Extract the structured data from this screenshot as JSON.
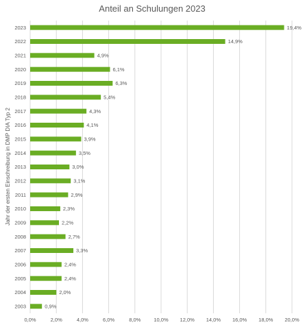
{
  "chart_data": {
    "type": "bar",
    "orientation": "horizontal",
    "title": "Anteil an Schulungen 2023",
    "ylabel": "Jahr der ersten Einschreibung in DMP DIA Typ 2",
    "xlabel": "",
    "categories": [
      "2023",
      "2022",
      "2021",
      "2020",
      "2019",
      "2018",
      "2017",
      "2016",
      "2015",
      "2014",
      "2013",
      "2012",
      "2011",
      "2010",
      "2009",
      "2008",
      "2007",
      "2006",
      "2005",
      "2004",
      "2003"
    ],
    "values": [
      19.4,
      14.9,
      4.9,
      6.1,
      6.3,
      5.4,
      4.3,
      4.1,
      3.9,
      3.5,
      3.0,
      3.1,
      2.9,
      2.3,
      2.2,
      2.7,
      3.3,
      2.4,
      2.4,
      2.0,
      0.9
    ],
    "data_labels": [
      "19,4%",
      "14,9%",
      "4,9%",
      "6,1%",
      "6,3%",
      "5,4%",
      "4,3%",
      "4,1%",
      "3,9%",
      "3,5%",
      "3,0%",
      "3,1%",
      "2,9%",
      "2,3%",
      "2,2%",
      "2,7%",
      "3,3%",
      "2,4%",
      "2,4%",
      "2,0%",
      "0,9%"
    ],
    "xlim": [
      0,
      20
    ],
    "x_ticks": [
      "0,0%",
      "2,0%",
      "4,0%",
      "6,0%",
      "8,0%",
      "10,0%",
      "12,0%",
      "14,0%",
      "16,0%",
      "18,0%",
      "20,0%"
    ],
    "grid": true,
    "legend": "none",
    "bar_color": "#6aad24"
  }
}
